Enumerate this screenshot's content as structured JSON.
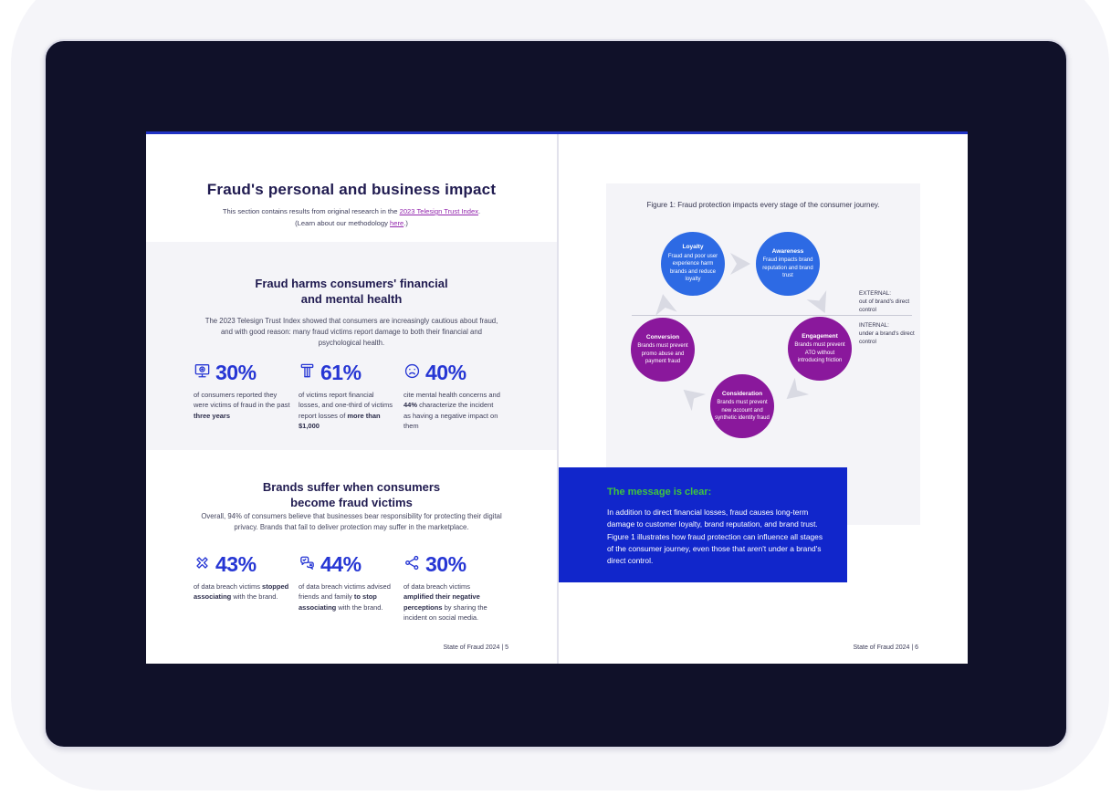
{
  "colors": {
    "screen_navy": "#101129",
    "heading_navy": "#201b50",
    "accent_blue": "#2636d4",
    "link_purple": "#9327ad",
    "circle_blue": "#2d6ae4",
    "circle_purple": "#8a189c",
    "message_box_blue": "#1126cb",
    "message_heading_green": "#3fc43f",
    "panel_gray": "#f4f4f8",
    "arrow_gray": "#d9dae3"
  },
  "left_page": {
    "title": "Fraud's personal and business impact",
    "subtitle": {
      "line1_prefix": "This section contains results from original research in the ",
      "line1_link": "2023 Telesign Trust Index",
      "line1_suffix": ".",
      "line2_prefix": "(Learn about our methodology ",
      "line2_link": "here",
      "line2_suffix": ".)"
    },
    "section1": {
      "heading_line1": "Fraud harms consumers' financial",
      "heading_line2": "and mental health",
      "body": "The 2023 Telesign Trust Index showed that consumers are increasingly cautious about fraud, and with good reason: many fraud victims report damage to both their financial and psychological health.",
      "stats": [
        {
          "icon": "monitor-icon",
          "value": "30%",
          "desc": [
            {
              "t": "of consumers reported they were victims of fraud in the past ",
              "b": false
            },
            {
              "t": "three years",
              "b": true
            }
          ]
        },
        {
          "icon": "atm-icon",
          "value": "61%",
          "desc": [
            {
              "t": "of victims report financial losses, and one-third of victims report losses of ",
              "b": false
            },
            {
              "t": "more than $1,000",
              "b": true
            }
          ]
        },
        {
          "icon": "sad-face-icon",
          "value": "40%",
          "desc": [
            {
              "t": "cite mental health concerns and ",
              "b": false
            },
            {
              "t": "44%",
              "b": true
            },
            {
              "t": " characterize the incident as having a negative impact on them",
              "b": false
            }
          ]
        }
      ]
    },
    "section2": {
      "heading_line1": "Brands suffer when consumers",
      "heading_line2": "become fraud victims",
      "body": "Overall, 94% of consumers believe that businesses bear responsibility for protecting their digital privacy. Brands that fail to deliver protection may suffer in the marketplace.",
      "stats": [
        {
          "icon": "cross-icon",
          "value": "43%",
          "desc": [
            {
              "t": "of data breach victims ",
              "b": false
            },
            {
              "t": "stopped associating",
              "b": true
            },
            {
              "t": " with the brand.",
              "b": false
            }
          ]
        },
        {
          "icon": "chat-bubbles-icon",
          "value": "44%",
          "desc": [
            {
              "t": "of data breach victims advised friends and family ",
              "b": false
            },
            {
              "t": "to stop associating",
              "b": true
            },
            {
              "t": " with the brand.",
              "b": false
            }
          ]
        },
        {
          "icon": "share-icon",
          "value": "30%",
          "desc": [
            {
              "t": "of data breach victims ",
              "b": false
            },
            {
              "t": "amplified their negative perceptions",
              "b": true
            },
            {
              "t": " by sharing the incident on social media.",
              "b": false
            }
          ]
        }
      ]
    },
    "footer": "State of Fraud 2024 | 5"
  },
  "right_page": {
    "figure_caption": "Figure 1: Fraud protection impacts every stage of the consumer journey.",
    "diagram": {
      "external": {
        "title": "EXTERNAL:",
        "text": "out of brand's direct control"
      },
      "internal": {
        "title": "INTERNAL:",
        "text": "under a brand's direct control"
      },
      "circles": [
        {
          "id": "loyalty",
          "label": "Loyalty",
          "text": "Fraud and poor user experience harm brands and reduce loyalty"
        },
        {
          "id": "awareness",
          "label": "Awareness",
          "text": "Fraud impacts brand reputation and brand trust"
        },
        {
          "id": "conversion",
          "label": "Conversion",
          "text": "Brands must prevent promo abuse and payment fraud"
        },
        {
          "id": "engagement",
          "label": "Engagement",
          "text": "Brands must prevent ATO without introducing friction"
        },
        {
          "id": "consideration",
          "label": "Consideration",
          "text": "Brands must prevent new account and synthetic identity fraud"
        }
      ]
    },
    "message_box": {
      "heading": "The message is clear:",
      "body": "In addition to direct financial losses, fraud causes long-term damage to customer loyalty, brand reputation, and brand trust. Figure 1 illustrates how fraud protection can influence all stages of the consumer journey, even those that aren't under a brand's direct control."
    },
    "footer": "State of Fraud 2024 | 6"
  }
}
